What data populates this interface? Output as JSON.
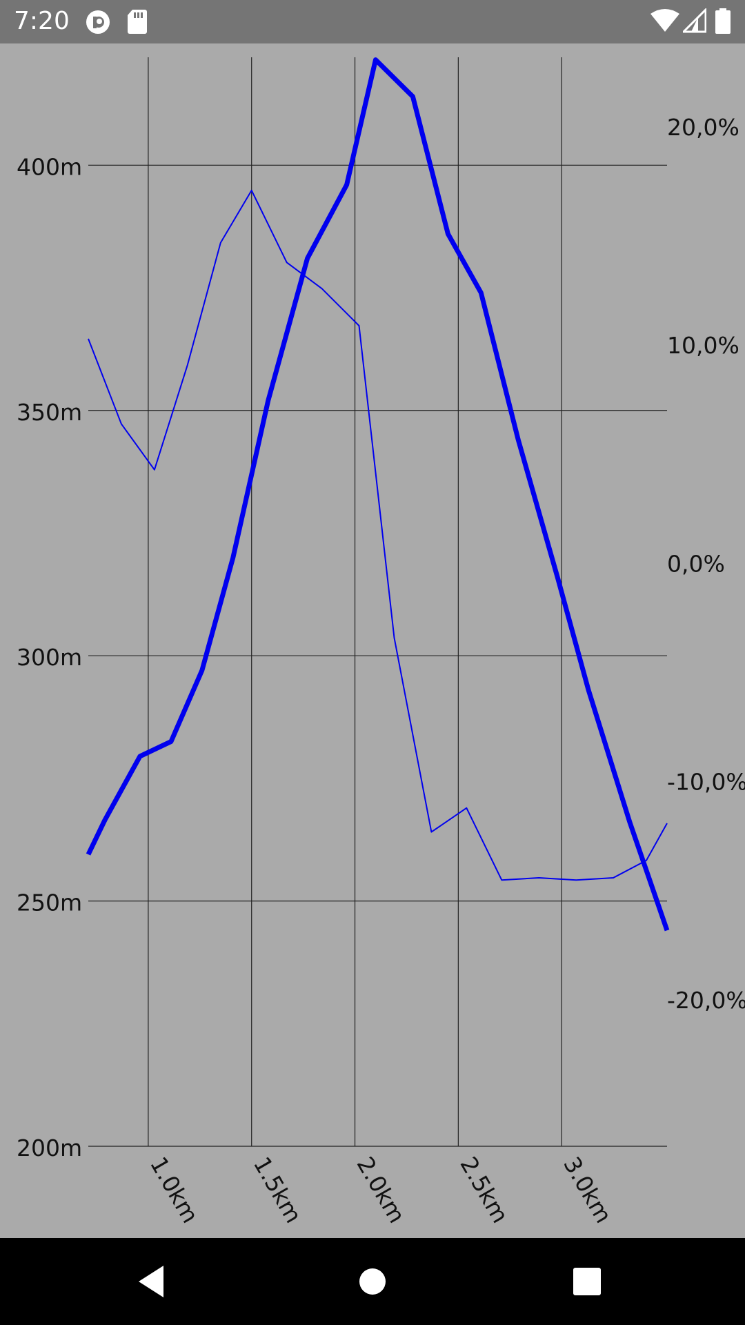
{
  "status_bar": {
    "time": "7:20",
    "icons": [
      "pocket-casts-icon",
      "sd-card-icon",
      "wifi-icon",
      "cell-signal-icon",
      "battery-icon"
    ]
  },
  "chart_data": {
    "type": "line",
    "title": "",
    "xlabel": "",
    "x_tick_labels": [
      "1.0km",
      "1.5km",
      "2.0km",
      "2.5km",
      "3.0km"
    ],
    "x_ticks": [
      1.0,
      1.5,
      2.0,
      2.5,
      3.0
    ],
    "xlim": [
      0.71,
      3.51
    ],
    "y_left": {
      "tick_labels": [
        "400m",
        "350m",
        "300m",
        "250m",
        "200m"
      ],
      "ticks": [
        400,
        350,
        300,
        250,
        200
      ],
      "ylim": [
        200,
        422
      ]
    },
    "y_right": {
      "tick_labels": [
        "20,0%",
        "10,0%",
        "0,0%",
        "-10,0%",
        "-20,0%"
      ],
      "ticks": [
        20,
        10,
        0,
        -10,
        -20
      ],
      "ylim": [
        -26.3,
        23.6
      ]
    },
    "grid": true,
    "color": "#0000ee",
    "series": [
      {
        "axis": "left",
        "line_width": 7,
        "x": [
          0.71,
          0.79,
          0.96,
          1.11,
          1.26,
          1.41,
          1.58,
          1.77,
          1.96,
          2.1,
          2.28,
          2.45,
          2.61,
          2.79,
          2.98,
          3.13,
          3.33,
          3.51
        ],
        "y": [
          259.5,
          266.5,
          279.5,
          282.5,
          297,
          320,
          352,
          381,
          396,
          421.5,
          414,
          386,
          374,
          344,
          316,
          293,
          266,
          244
        ]
      },
      {
        "axis": "right",
        "line_width": 2,
        "x": [
          0.71,
          0.87,
          1.03,
          1.19,
          1.35,
          1.5,
          1.67,
          1.84,
          2.02,
          2.19,
          2.37,
          2.54,
          2.71,
          2.89,
          3.07,
          3.25,
          3.41,
          3.51
        ],
        "y": [
          10.7,
          6.8,
          4.7,
          9.5,
          15.1,
          17.5,
          14.2,
          13.0,
          11.3,
          -3.0,
          -11.9,
          -10.8,
          -14.1,
          -14.0,
          -14.1,
          -14.0,
          -13.2,
          -11.5
        ]
      }
    ]
  }
}
